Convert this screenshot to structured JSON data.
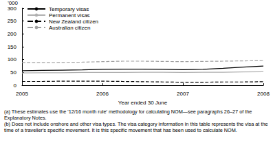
{
  "chart_data": {
    "type": "line",
    "y_label": "'000",
    "x_label": "Year ended 30 June",
    "x": [
      2005,
      2005.25,
      2005.5,
      2005.75,
      2006,
      2006.25,
      2006.5,
      2006.75,
      2007,
      2007.25,
      2007.5,
      2007.75,
      2008
    ],
    "series": [
      {
        "name": "Temporary visas",
        "color": "#000000",
        "line_style": "solid",
        "values": [
          57,
          58,
          59,
          60,
          62,
          63,
          63,
          62,
          61,
          62,
          66,
          71,
          75
        ]
      },
      {
        "name": "Permanent visas",
        "color": "#b0b0b0",
        "line_style": "solid",
        "values": [
          48,
          49,
          49,
          50,
          50,
          50,
          51,
          51,
          50,
          51,
          51,
          52,
          53
        ]
      },
      {
        "name": "New Zealand citizen",
        "color": "#000000",
        "line_style": "dashed",
        "values": [
          15,
          15,
          16,
          16,
          16,
          15,
          14,
          13,
          12,
          12,
          13,
          13,
          14
        ]
      },
      {
        "name": "Australian citizen",
        "color": "#a0a0a0",
        "line_style": "dashed",
        "values": [
          88,
          88,
          89,
          90,
          92,
          94,
          94,
          93,
          92,
          93,
          94,
          95,
          96
        ]
      }
    ],
    "xlim": [
      2005,
      2008
    ],
    "xticks": [
      2005,
      2006,
      2007,
      2008
    ],
    "ylim": [
      0,
      300
    ],
    "yticks": [
      0,
      50,
      100,
      150,
      200,
      250,
      300
    ],
    "grid": false,
    "legend": "top-left",
    "notes": [
      "(a) These estimates use the '12/16 month rule' methodology for calculating NOM—see paragraphs 26–27 of the Explanatory Notes.",
      "(b) Does not include onshore and other visa types. The visa category information in this table represents the visa at the time of a traveller's specific movement. It is this specific movement that has been used to calculate NOM."
    ]
  }
}
